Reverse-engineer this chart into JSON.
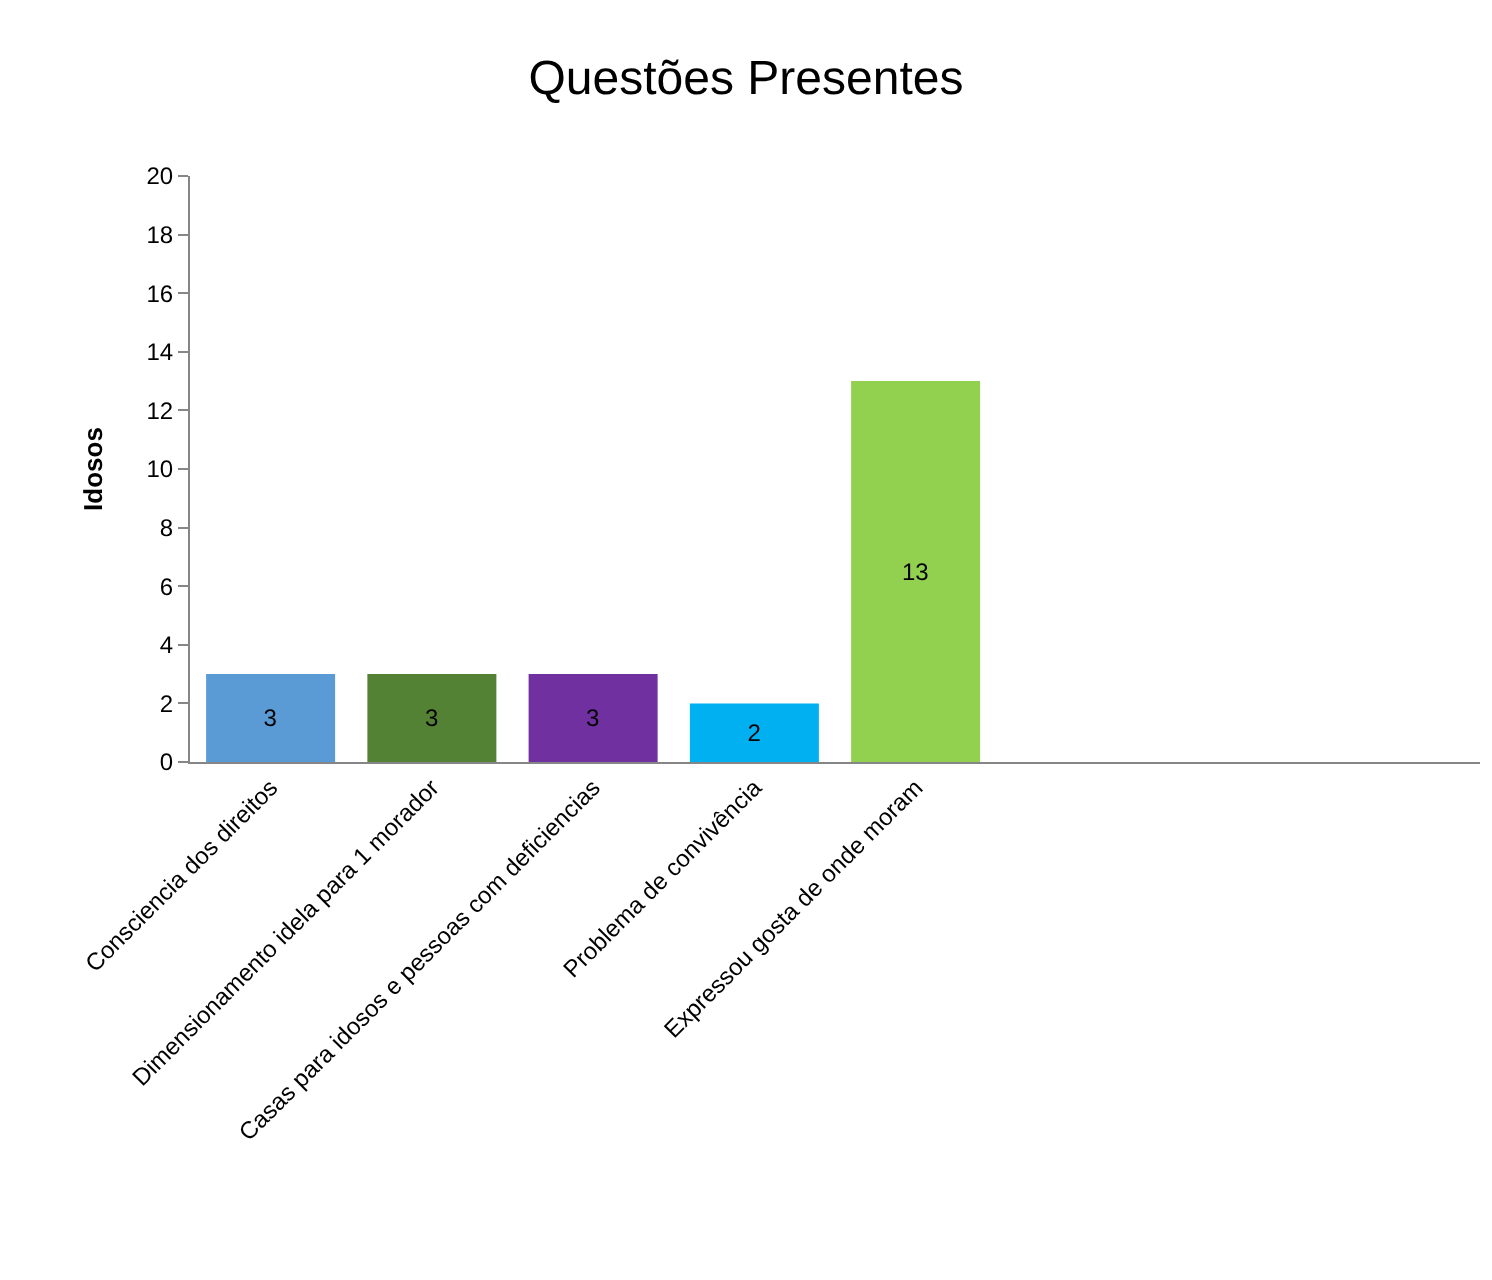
{
  "chart_data": {
    "type": "bar",
    "title": "Questões Presentes",
    "ylabel": "Idosos",
    "categories": [
      "Consciencia dos direitos",
      "Dimensionamento idela para 1 morador",
      "Casas para idosos e pessoas com deficiencias",
      "Problema de convivência",
      "Expressou gosta de onde moram",
      null,
      null,
      null
    ],
    "values": [
      3,
      3,
      3,
      2,
      13,
      null,
      null,
      null
    ],
    "colors": [
      "#5b9bd5",
      "#548235",
      "#7030a0",
      "#00b0f0",
      "#92d050",
      "#5b9bd5",
      "#5b9bd5",
      "#5b9bd5"
    ],
    "ylim": [
      0,
      20
    ],
    "yticks": [
      0,
      2,
      4,
      6,
      8,
      10,
      12,
      14,
      16,
      18,
      20
    ],
    "data_labels": true
  }
}
